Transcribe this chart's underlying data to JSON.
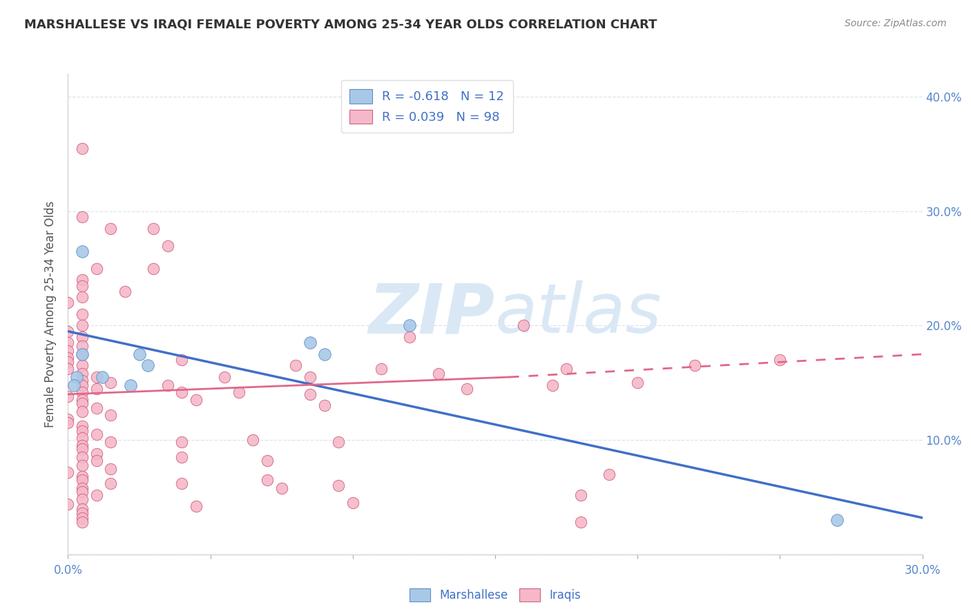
{
  "title": "MARSHALLESE VS IRAQI FEMALE POVERTY AMONG 25-34 YEAR OLDS CORRELATION CHART",
  "source": "Source: ZipAtlas.com",
  "ylabel": "Female Poverty Among 25-34 Year Olds",
  "xlim": [
    0.0,
    0.3
  ],
  "ylim": [
    0.0,
    0.42
  ],
  "xtick_positions": [
    0.0,
    0.05,
    0.1,
    0.15,
    0.2,
    0.25,
    0.3
  ],
  "xtick_labels_visible": [
    "0.0%",
    "",
    "",
    "",
    "",
    "",
    "30.0%"
  ],
  "right_ytick_labels": [
    "10.0%",
    "20.0%",
    "30.0%",
    "40.0%"
  ],
  "right_ytick_positions": [
    0.1,
    0.2,
    0.3,
    0.4
  ],
  "watermark_zip": "ZIP",
  "watermark_atlas": "atlas",
  "watermark_color": "#dae8f5",
  "background_color": "#ffffff",
  "grid_color": "#d8e4f0",
  "marshallese_color": "#a8c8e8",
  "marshallese_edge_color": "#6090c0",
  "iraqi_color": "#f5b8c8",
  "iraqi_edge_color": "#d06080",
  "marshallese_line_color": "#4070c8",
  "iraqi_line_color": "#e06888",
  "legend_marshallese_R": "-0.618",
  "legend_marshallese_N": "12",
  "legend_iraqi_R": "0.039",
  "legend_iraqi_N": "98",
  "marshallese_scatter": [
    [
      0.005,
      0.265
    ],
    [
      0.005,
      0.175
    ],
    [
      0.025,
      0.175
    ],
    [
      0.028,
      0.165
    ],
    [
      0.003,
      0.155
    ],
    [
      0.012,
      0.155
    ],
    [
      0.002,
      0.148
    ],
    [
      0.022,
      0.148
    ],
    [
      0.12,
      0.2
    ],
    [
      0.085,
      0.185
    ],
    [
      0.09,
      0.175
    ],
    [
      0.27,
      0.03
    ]
  ],
  "iraqi_scatter": [
    [
      0.005,
      0.355
    ],
    [
      0.005,
      0.295
    ],
    [
      0.015,
      0.285
    ],
    [
      0.01,
      0.25
    ],
    [
      0.005,
      0.24
    ],
    [
      0.005,
      0.235
    ],
    [
      0.02,
      0.23
    ],
    [
      0.005,
      0.225
    ],
    [
      0.0,
      0.22
    ],
    [
      0.005,
      0.21
    ],
    [
      0.005,
      0.2
    ],
    [
      0.0,
      0.195
    ],
    [
      0.005,
      0.19
    ],
    [
      0.0,
      0.185
    ],
    [
      0.005,
      0.182
    ],
    [
      0.0,
      0.178
    ],
    [
      0.005,
      0.175
    ],
    [
      0.0,
      0.172
    ],
    [
      0.0,
      0.168
    ],
    [
      0.005,
      0.165
    ],
    [
      0.0,
      0.162
    ],
    [
      0.005,
      0.158
    ],
    [
      0.01,
      0.155
    ],
    [
      0.005,
      0.152
    ],
    [
      0.015,
      0.15
    ],
    [
      0.005,
      0.148
    ],
    [
      0.01,
      0.145
    ],
    [
      0.005,
      0.142
    ],
    [
      0.0,
      0.138
    ],
    [
      0.005,
      0.135
    ],
    [
      0.005,
      0.132
    ],
    [
      0.01,
      0.128
    ],
    [
      0.005,
      0.125
    ],
    [
      0.015,
      0.122
    ],
    [
      0.0,
      0.118
    ],
    [
      0.0,
      0.115
    ],
    [
      0.005,
      0.112
    ],
    [
      0.005,
      0.108
    ],
    [
      0.01,
      0.105
    ],
    [
      0.005,
      0.102
    ],
    [
      0.015,
      0.098
    ],
    [
      0.005,
      0.095
    ],
    [
      0.005,
      0.092
    ],
    [
      0.01,
      0.088
    ],
    [
      0.005,
      0.085
    ],
    [
      0.01,
      0.082
    ],
    [
      0.005,
      0.078
    ],
    [
      0.015,
      0.075
    ],
    [
      0.0,
      0.072
    ],
    [
      0.005,
      0.068
    ],
    [
      0.005,
      0.065
    ],
    [
      0.015,
      0.062
    ],
    [
      0.005,
      0.058
    ],
    [
      0.005,
      0.055
    ],
    [
      0.01,
      0.052
    ],
    [
      0.005,
      0.048
    ],
    [
      0.0,
      0.044
    ],
    [
      0.005,
      0.04
    ],
    [
      0.005,
      0.036
    ],
    [
      0.005,
      0.032
    ],
    [
      0.005,
      0.028
    ],
    [
      0.03,
      0.285
    ],
    [
      0.03,
      0.25
    ],
    [
      0.035,
      0.27
    ],
    [
      0.04,
      0.17
    ],
    [
      0.035,
      0.148
    ],
    [
      0.04,
      0.142
    ],
    [
      0.045,
      0.135
    ],
    [
      0.04,
      0.098
    ],
    [
      0.04,
      0.085
    ],
    [
      0.04,
      0.062
    ],
    [
      0.045,
      0.042
    ],
    [
      0.055,
      0.155
    ],
    [
      0.06,
      0.142
    ],
    [
      0.065,
      0.1
    ],
    [
      0.07,
      0.082
    ],
    [
      0.07,
      0.065
    ],
    [
      0.075,
      0.058
    ],
    [
      0.08,
      0.165
    ],
    [
      0.085,
      0.155
    ],
    [
      0.085,
      0.14
    ],
    [
      0.09,
      0.13
    ],
    [
      0.095,
      0.098
    ],
    [
      0.095,
      0.06
    ],
    [
      0.1,
      0.045
    ],
    [
      0.11,
      0.162
    ],
    [
      0.12,
      0.19
    ],
    [
      0.13,
      0.158
    ],
    [
      0.14,
      0.145
    ],
    [
      0.16,
      0.2
    ],
    [
      0.17,
      0.148
    ],
    [
      0.175,
      0.162
    ],
    [
      0.18,
      0.052
    ],
    [
      0.19,
      0.07
    ],
    [
      0.2,
      0.15
    ],
    [
      0.22,
      0.165
    ],
    [
      0.25,
      0.17
    ],
    [
      0.18,
      0.028
    ]
  ],
  "marshallese_line": {
    "x0": 0.0,
    "y0": 0.195,
    "x1": 0.3,
    "y1": 0.032
  },
  "iraqi_line_solid": {
    "x0": 0.0,
    "y0": 0.14,
    "x1": 0.155,
    "y1": 0.155
  },
  "iraqi_line_dashed": {
    "x0": 0.155,
    "y0": 0.155,
    "x1": 0.3,
    "y1": 0.175
  }
}
